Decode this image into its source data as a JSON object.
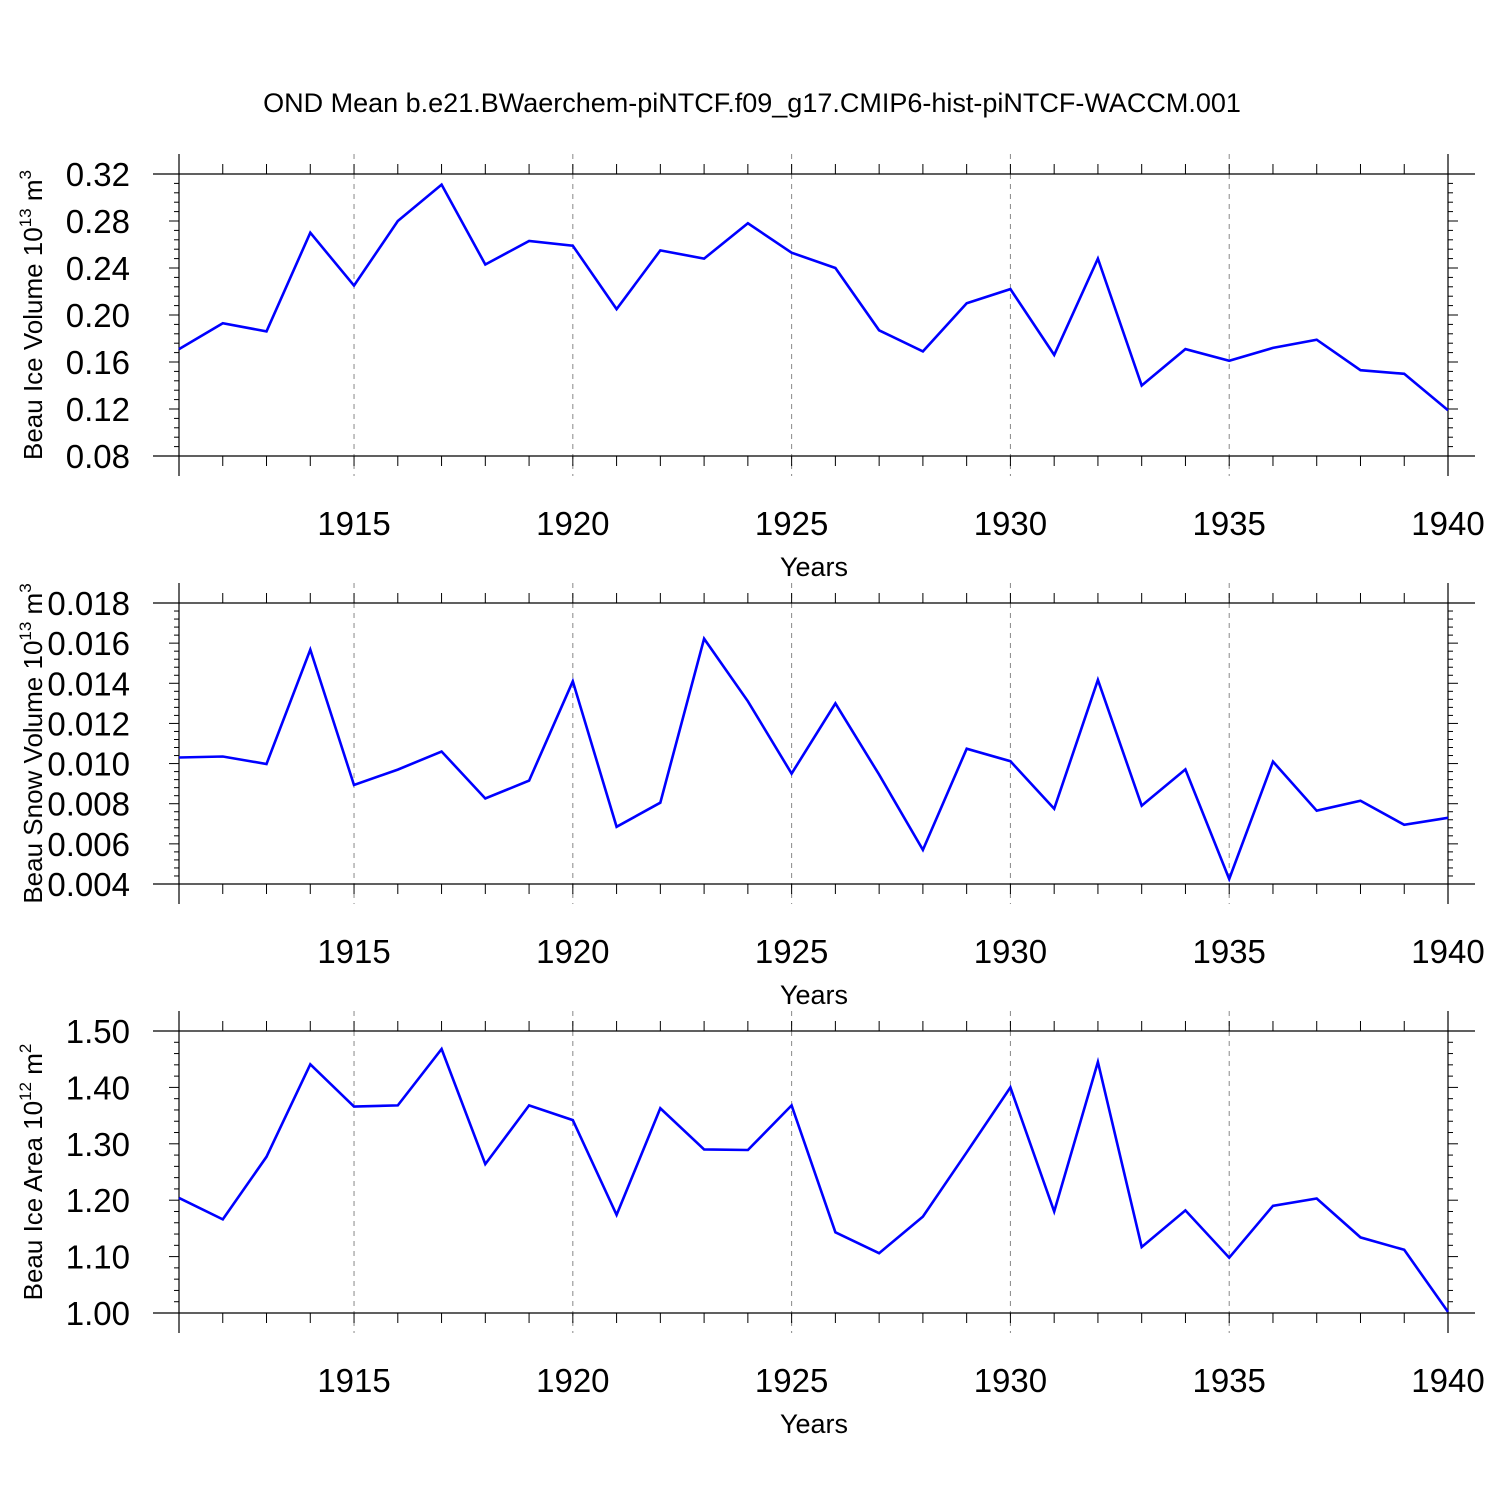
{
  "title": "OND Mean b.e21.BWaerchem-piNTCF.f09_g17.CMIP6-hist-piNTCF-WACCM.001",
  "line_color": "#0000ff",
  "chart_data": [
    {
      "type": "line",
      "ylabel_main": "Beau Ice Volume 10",
      "ylabel_exp": "13",
      "ylabel_unit": " m",
      "ylabel_unit_exp": "3",
      "xlabel": "Years",
      "xlim": [
        1911,
        1940
      ],
      "ylim": [
        0.08,
        0.32
      ],
      "grid": "vertical dashed at major x ticks",
      "x_ticks": [
        1915,
        1920,
        1925,
        1930,
        1935,
        1940
      ],
      "x_tick_labels": [
        "1915",
        "1920",
        "1925",
        "1930",
        "1935",
        "1940"
      ],
      "y_ticks": [
        0.08,
        0.12,
        0.16,
        0.2,
        0.24,
        0.28,
        0.32
      ],
      "y_tick_labels": [
        "0.08",
        "0.12",
        "0.16",
        "0.20",
        "0.24",
        "0.28",
        "0.32"
      ],
      "y_minor_step": 0.008,
      "x": [
        1911,
        1912,
        1913,
        1914,
        1915,
        1916,
        1917,
        1918,
        1919,
        1920,
        1921,
        1922,
        1923,
        1924,
        1925,
        1926,
        1927,
        1928,
        1929,
        1930,
        1931,
        1932,
        1933,
        1934,
        1935,
        1936,
        1937,
        1938,
        1939,
        1940
      ],
      "values": [
        0.171,
        0.193,
        0.186,
        0.27,
        0.225,
        0.28,
        0.311,
        0.243,
        0.263,
        0.259,
        0.205,
        0.255,
        0.248,
        0.278,
        0.253,
        0.24,
        0.187,
        0.169,
        0.21,
        0.222,
        0.166,
        0.248,
        0.14,
        0.171,
        0.161,
        0.172,
        0.179,
        0.153,
        0.15,
        0.119
      ]
    },
    {
      "type": "line",
      "ylabel_main": "Beau Snow Volume 10",
      "ylabel_exp": "13",
      "ylabel_unit": " m",
      "ylabel_unit_exp": "3",
      "xlabel": "Years",
      "xlim": [
        1911,
        1940
      ],
      "ylim": [
        0.004,
        0.018
      ],
      "grid": "vertical dashed at major x ticks",
      "x_ticks": [
        1915,
        1920,
        1925,
        1930,
        1935,
        1940
      ],
      "x_tick_labels": [
        "1915",
        "1920",
        "1925",
        "1930",
        "1935",
        "1940"
      ],
      "y_ticks": [
        0.004,
        0.006,
        0.008,
        0.01,
        0.012,
        0.014,
        0.016,
        0.018
      ],
      "y_tick_labels": [
        "0.004",
        "0.006",
        "0.008",
        "0.010",
        "0.012",
        "0.014",
        "0.016",
        "0.018"
      ],
      "y_minor_step": 0.0004,
      "x": [
        1911,
        1912,
        1913,
        1914,
        1915,
        1916,
        1917,
        1918,
        1919,
        1920,
        1921,
        1922,
        1923,
        1924,
        1925,
        1926,
        1927,
        1928,
        1929,
        1930,
        1931,
        1932,
        1933,
        1934,
        1935,
        1936,
        1937,
        1938,
        1939,
        1940
      ],
      "values": [
        0.0103,
        0.01035,
        0.00998,
        0.01568,
        0.00893,
        0.0097,
        0.0106,
        0.00826,
        0.00915,
        0.0141,
        0.00685,
        0.00805,
        0.01622,
        0.0131,
        0.0095,
        0.013,
        0.00945,
        0.0057,
        0.01074,
        0.01012,
        0.00775,
        0.01417,
        0.0079,
        0.00971,
        0.00425,
        0.0101,
        0.00765,
        0.00815,
        0.00695,
        0.0073
      ]
    },
    {
      "type": "line",
      "ylabel_main": "Beau Ice Area 10",
      "ylabel_exp": "12",
      "ylabel_unit": " m",
      "ylabel_unit_exp": "2",
      "xlabel": "Years",
      "xlim": [
        1911,
        1940
      ],
      "ylim": [
        1.0,
        1.5
      ],
      "grid": "vertical dashed at major x ticks",
      "x_ticks": [
        1915,
        1920,
        1925,
        1930,
        1935,
        1940
      ],
      "x_tick_labels": [
        "1915",
        "1920",
        "1925",
        "1930",
        "1935",
        "1940"
      ],
      "y_ticks": [
        1.0,
        1.1,
        1.2,
        1.3,
        1.4,
        1.5
      ],
      "y_tick_labels": [
        "1.00",
        "1.10",
        "1.20",
        "1.30",
        "1.40",
        "1.50"
      ],
      "y_minor_step": 0.02,
      "x": [
        1911,
        1912,
        1913,
        1914,
        1915,
        1916,
        1917,
        1918,
        1919,
        1920,
        1921,
        1922,
        1923,
        1924,
        1925,
        1926,
        1927,
        1928,
        1929,
        1930,
        1931,
        1932,
        1933,
        1934,
        1935,
        1936,
        1937,
        1938,
        1939,
        1940
      ],
      "values": [
        1.204,
        1.166,
        1.277,
        1.441,
        1.366,
        1.368,
        1.468,
        1.264,
        1.368,
        1.342,
        1.174,
        1.363,
        1.29,
        1.289,
        1.368,
        1.143,
        1.106,
        1.171,
        1.285,
        1.4,
        1.18,
        1.445,
        1.117,
        1.182,
        1.098,
        1.19,
        1.203,
        1.134,
        1.112,
        1.002
      ]
    }
  ]
}
